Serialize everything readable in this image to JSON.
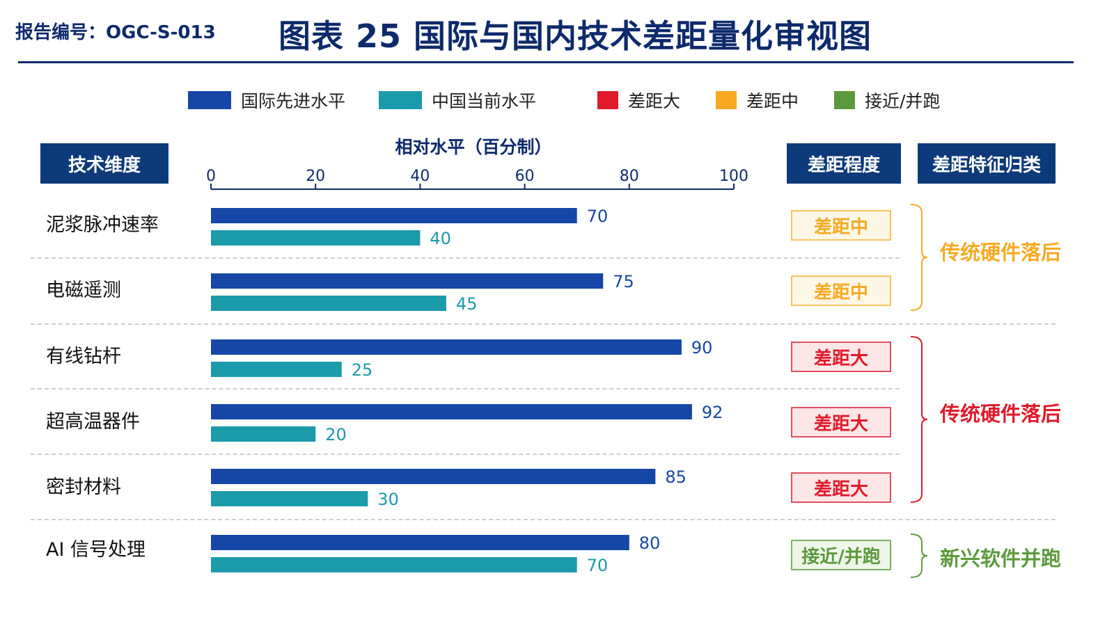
{
  "header": {
    "report_id": "报告编号：OGC-S-013",
    "title": "图表 25  国际与国内技术差距量化审视图"
  },
  "legend": [
    {
      "label": "国际先进水平",
      "color": "#1646a6"
    },
    {
      "label": "中国当前水平",
      "color": "#1b9aaa"
    },
    {
      "label": "差距大",
      "color": "#e01a2b"
    },
    {
      "label": "差距中",
      "color": "#f6aa23"
    },
    {
      "label": "接近/并跑",
      "color": "#5b9a3c"
    }
  ],
  "columns": {
    "dimension": "技术维度",
    "gap_degree": "差距程度",
    "gap_class": "差距特征归类"
  },
  "chart_data": {
    "type": "bar",
    "orientation": "horizontal",
    "xlabel": "相对水平（百分制）",
    "xlim": [
      0,
      100
    ],
    "ticks": [
      0,
      20,
      40,
      60,
      80,
      100
    ],
    "categories": [
      "泥浆脉冲速率",
      "电磁遥测",
      "有线钻杆",
      "超高温器件",
      "密封材料",
      "AI 信号处理"
    ],
    "series": [
      {
        "name": "国际先进水平",
        "color": "#1646a6",
        "values": [
          70,
          75,
          90,
          92,
          85,
          80
        ]
      },
      {
        "name": "中国当前水平",
        "color": "#1b9aaa",
        "values": [
          40,
          45,
          25,
          20,
          30,
          70
        ]
      }
    ],
    "gap_degree": [
      "差距中",
      "差距中",
      "差距大",
      "差距大",
      "差距大",
      "接近/并跑"
    ],
    "gap_groups": [
      {
        "label": "传统硬件落后",
        "color": "#f6aa23"
      },
      {
        "label": "传统硬件落后",
        "color": "#e01a2b"
      },
      {
        "label": "新兴软件并跑",
        "color": "#5b9a3c"
      }
    ]
  },
  "badge_styles": {
    "差距中": {
      "fg": "#f6aa23",
      "bg": "#fdf7e6",
      "border": "#f6c45a"
    },
    "差距大": {
      "fg": "#e01a2b",
      "bg": "#fde6e8",
      "border": "#e05060"
    },
    "接近/并跑": {
      "fg": "#5b9a3c",
      "bg": "#eef6e8",
      "border": "#7db05e"
    }
  }
}
